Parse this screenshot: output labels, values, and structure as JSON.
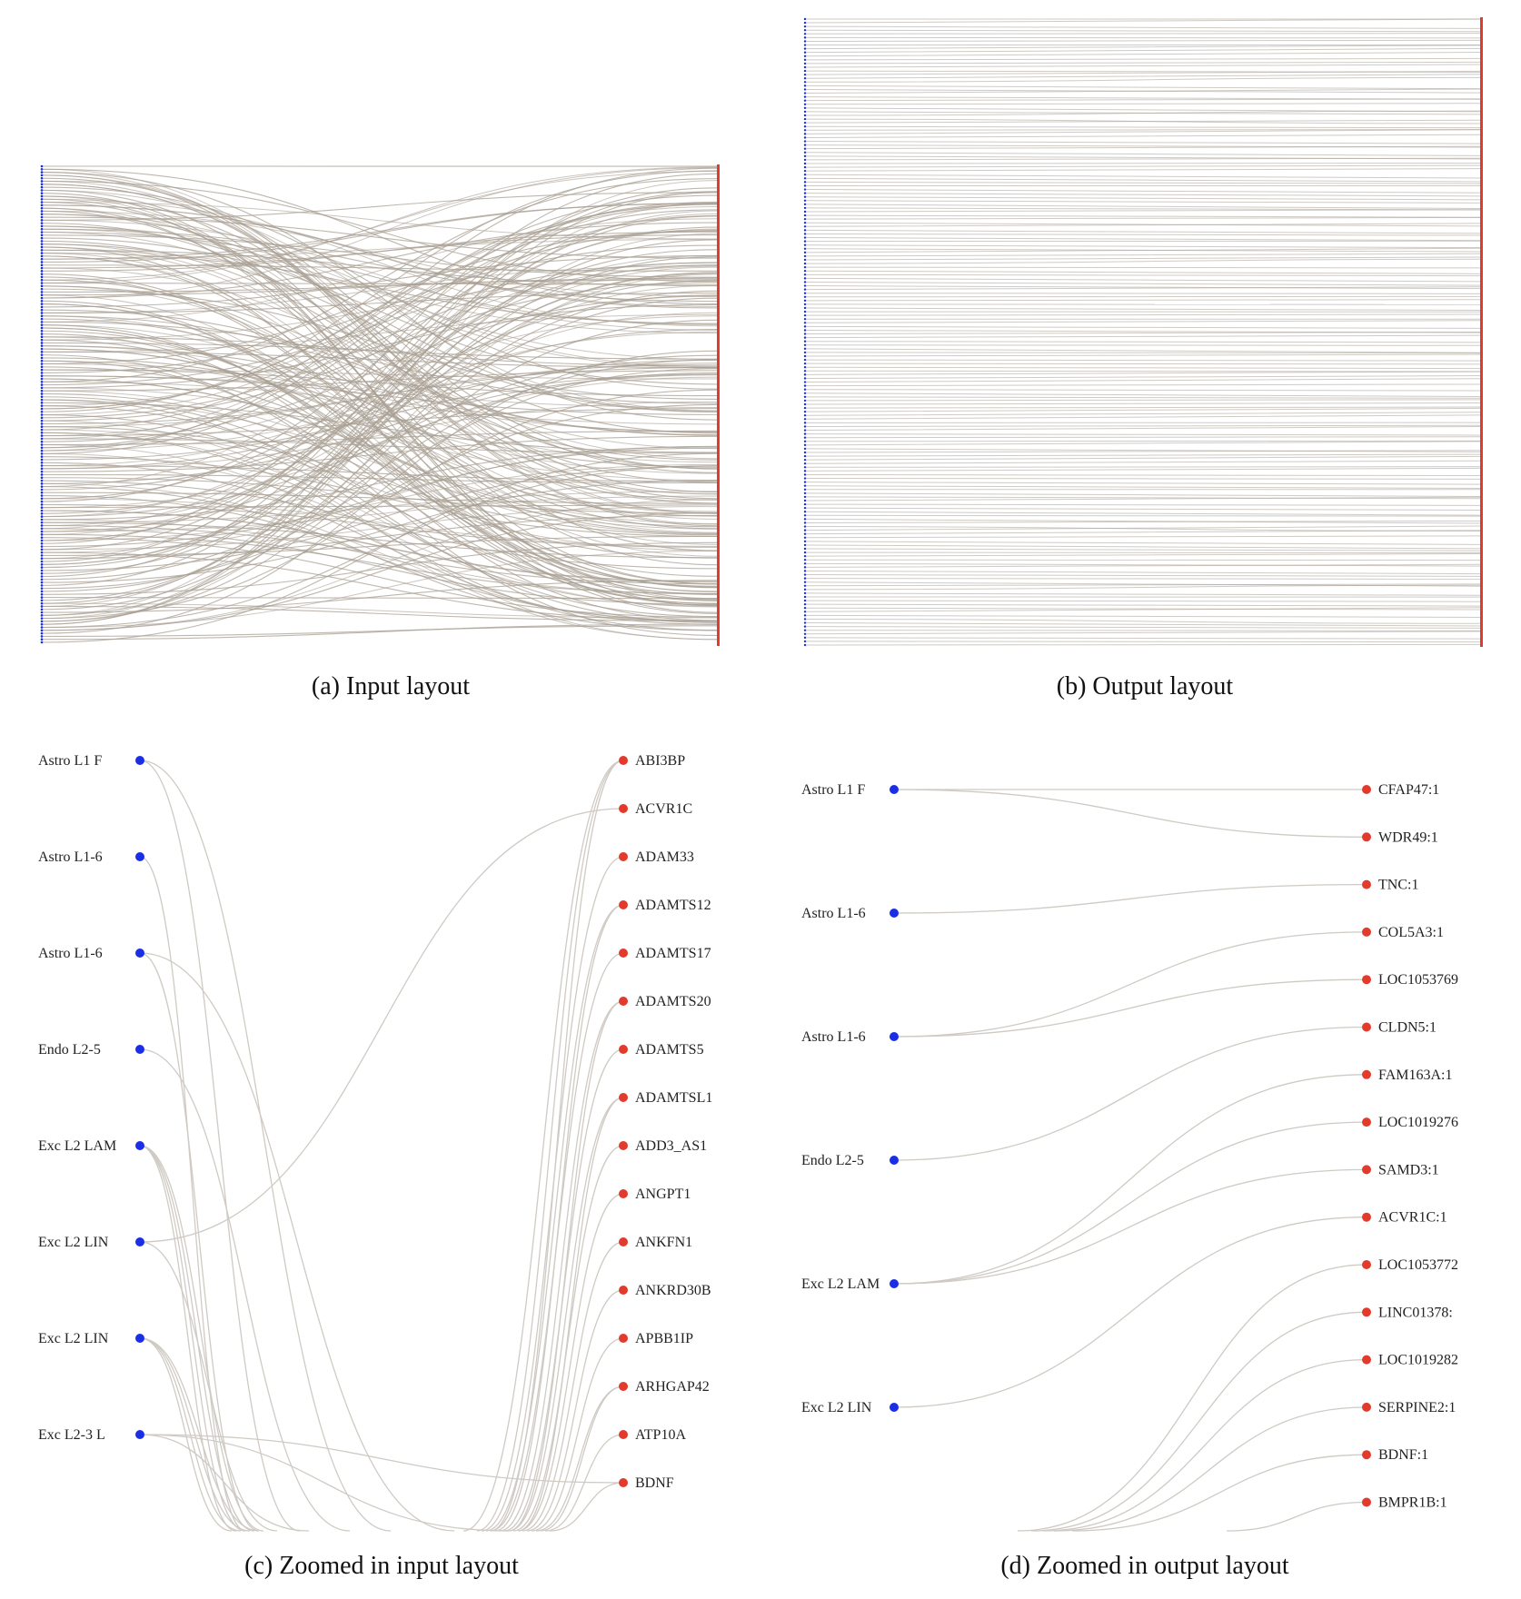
{
  "captions": {
    "a": "(a) Input layout",
    "b": "(b) Output layout",
    "c": "(c) Zoomed in input layout",
    "d": "(d) Zoomed in output layout"
  },
  "colors": {
    "source_node": "#1a2ee6",
    "target_node": "#e23a2c",
    "edge": "#a89f93",
    "edge_light": "#cfcac3"
  },
  "zoom_input": {
    "sources": [
      "Astro L1 F",
      "Astro L1-6",
      "Astro L1-6",
      "Endo L2-5",
      "Exc L2 LAM",
      "Exc L2 LIN",
      "Exc L2 LIN",
      "Exc L2-3 L"
    ],
    "targets": [
      "ABI3BP",
      "ACVR1C",
      "ADAM33",
      "ADAMTS12",
      "ADAMTS17",
      "ADAMTS20",
      "ADAMTS5",
      "ADAMTSL1",
      "ADD3_AS1",
      "ANGPT1",
      "ANKFN1",
      "ANKRD30B",
      "APBB1IP",
      "ARHGAP42",
      "ATP10A",
      "BDNF"
    ]
  },
  "zoom_output": {
    "sources": [
      "Astro L1 F",
      "Astro L1-6",
      "Astro L1-6",
      "Endo L2-5",
      "Exc L2 LAM",
      "Exc L2 LIN"
    ],
    "targets": [
      "CFAP47:1",
      "WDR49:1",
      "TNC:1",
      "COL5A3:1",
      "LOC1053769",
      "CLDN5:1",
      "FAM163A:1",
      "LOC1019276",
      "SAMD3:1",
      "ACVR1C:1",
      "LOC1053772",
      "LINC01378:",
      "LOC1019282",
      "SERPINE2:1",
      "BDNF:1",
      "BMPR1B:1"
    ]
  }
}
